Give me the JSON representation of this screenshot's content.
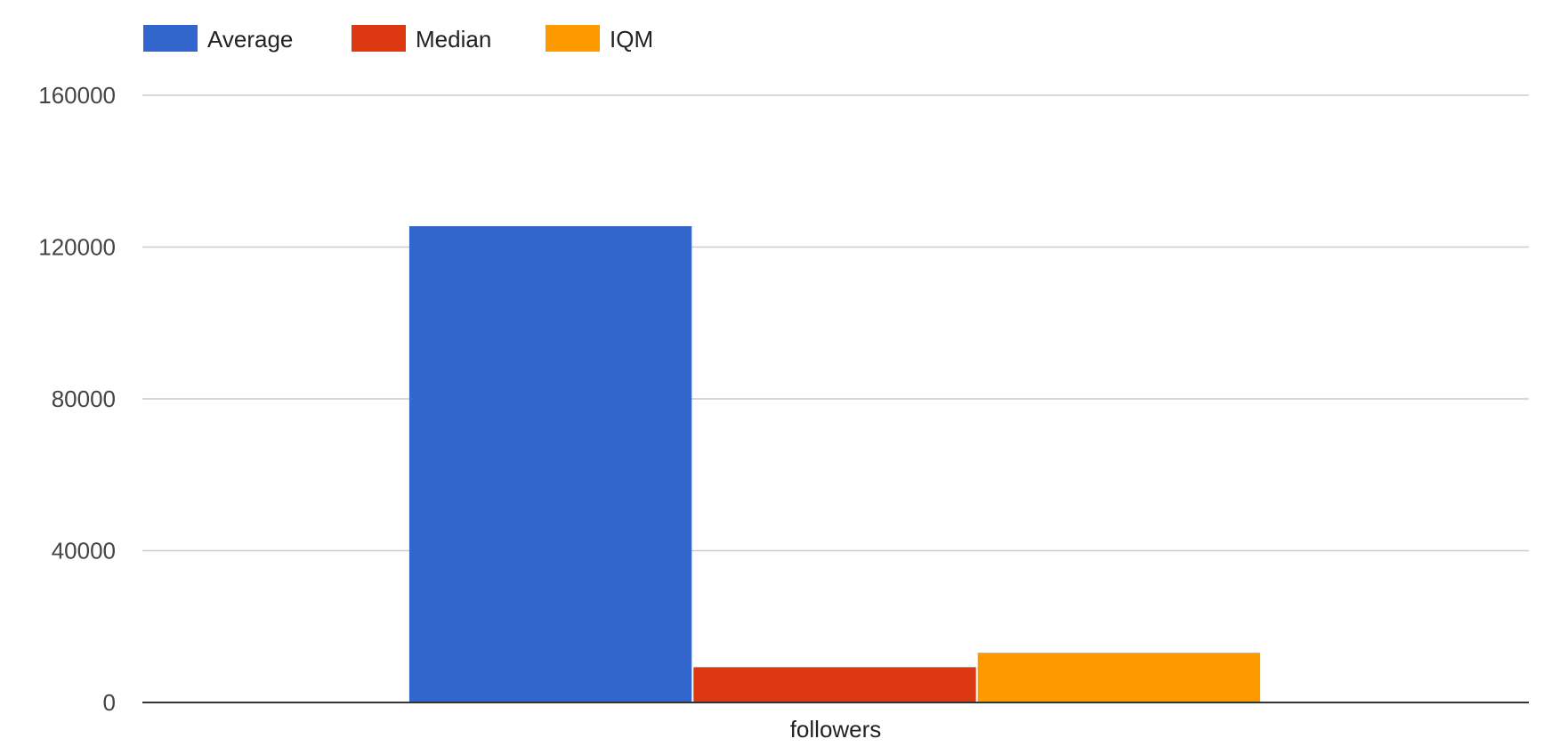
{
  "chart_data": {
    "type": "bar",
    "title": "",
    "xlabel": "",
    "ylabel": "",
    "categories": [
      "followers"
    ],
    "series": [
      {
        "name": "Average",
        "values": [
          125500
        ],
        "color": "#3366cc"
      },
      {
        "name": "Median",
        "values": [
          9300
        ],
        "color": "#dc3912"
      },
      {
        "name": "IQM",
        "values": [
          13100
        ],
        "color": "#ff9900"
      }
    ],
    "ylim": [
      0,
      160000
    ],
    "yticks": [
      0,
      40000,
      80000,
      120000,
      160000
    ],
    "ytick_labels": [
      "0",
      "40000",
      "80000",
      "120000",
      "160000"
    ],
    "grid": true,
    "legend_position": "top-left",
    "axis_color": "#333333",
    "grid_color": "#cccccc"
  }
}
